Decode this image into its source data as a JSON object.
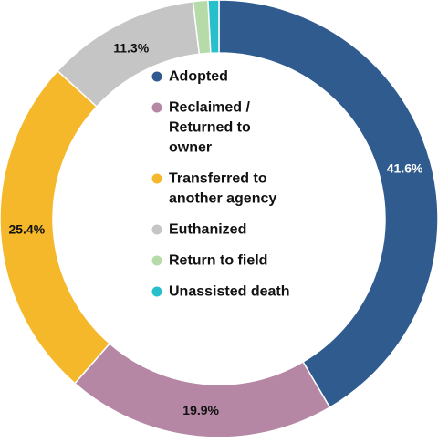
{
  "chart_data": {
    "type": "pie",
    "variant": "donut",
    "title": "",
    "categories": [
      "Adopted",
      "Reclaimed / Returned to owner",
      "Transferred to another agency",
      "Euthanized",
      "Return to field",
      "Unassisted death"
    ],
    "values": [
      41.6,
      19.9,
      25.4,
      11.3,
      1.1,
      0.8
    ],
    "data_labels": [
      "41.6%",
      "19.9%",
      "25.4%",
      "11.3%",
      "",
      ""
    ],
    "colors": [
      "#2f5b8e",
      "#b587a4",
      "#f4b82a",
      "#c5c5c5",
      "#b6dba9",
      "#27bfca"
    ],
    "legend": {
      "placement": "center",
      "entries": [
        {
          "lines": [
            "Adopted"
          ],
          "color": "#2f5b8e"
        },
        {
          "lines": [
            "Reclaimed /",
            "Returned to",
            "owner"
          ],
          "color": "#b587a4"
        },
        {
          "lines": [
            "Transferred to",
            "another agency"
          ],
          "color": "#f4b82a"
        },
        {
          "lines": [
            "Euthanized"
          ],
          "color": "#c5c5c5"
        },
        {
          "lines": [
            "Return to field"
          ],
          "color": "#b6dba9"
        },
        {
          "lines": [
            "Unassisted death"
          ],
          "color": "#27bfca"
        }
      ]
    },
    "label_colors": [
      "#ffffff",
      "#111111",
      "#111111",
      "#111111",
      "#111111",
      "#111111"
    ]
  }
}
